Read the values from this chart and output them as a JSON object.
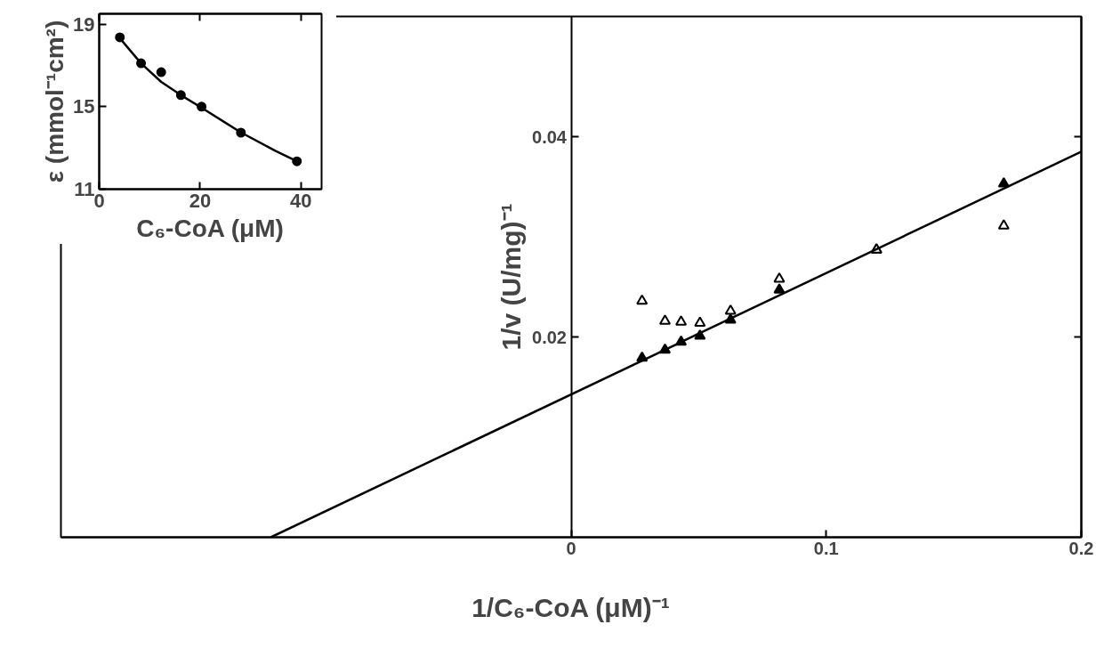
{
  "chart_data": [
    {
      "type": "scatter",
      "xlabel": "1/C₆-CoA (μM)⁻¹",
      "ylabel": "1/v (U/mg)⁻¹",
      "xlim": [
        -0.2,
        0.2
      ],
      "ylim": [
        0,
        0.052
      ],
      "xticks": [
        0,
        0.1,
        0.2
      ],
      "yticks": [
        0.02,
        0.04
      ],
      "x": [
        0.0278,
        0.0368,
        0.0431,
        0.0505,
        0.0625,
        0.0816,
        0.1197,
        0.1696
      ],
      "series": [
        {
          "color": "#000000",
          "marker": "triangle",
          "values": [
            0.0179,
            0.0187,
            0.0195,
            0.0201,
            0.0217,
            0.0247,
            0.0287,
            0.0353
          ]
        },
        {
          "color": "#ffffff",
          "marker": "triangle",
          "values": [
            0.0236,
            0.0216,
            0.0215,
            0.0214,
            0.0226,
            0.0258,
            0.0287,
            0.0311
          ]
        },
        {
          "type": "line",
          "color": "#000000",
          "x": [
            -0.1177,
            0.2
          ],
          "values": [
            0,
            0.0385
          ]
        }
      ]
    },
    {
      "type": "scatter",
      "xlabel": "C₆-CoA (μM)",
      "ylabel": "ε (mmol⁻¹cm²)",
      "xlim": [
        0,
        44.1
      ],
      "ylim": [
        11,
        19.5
      ],
      "xticks": [
        0,
        20,
        40
      ],
      "yticks": [
        11,
        15,
        19
      ],
      "x": [
        4.1,
        8.3,
        12.3,
        16.2,
        20.3,
        28.1,
        39.2
      ],
      "series": [
        {
          "color": "#000000",
          "marker": "circle",
          "values": [
            18.36,
            17.1,
            16.67,
            15.56,
            15.0,
            13.74,
            12.35
          ]
        },
        {
          "type": "line",
          "color": "#000000",
          "x": [
            4.5,
            8.3,
            12.3,
            16.2,
            20.3,
            28.1,
            35,
            39.2
          ],
          "values": [
            18.2,
            17.1,
            16.2,
            15.56,
            14.95,
            13.75,
            12.85,
            12.35
          ]
        }
      ]
    }
  ]
}
